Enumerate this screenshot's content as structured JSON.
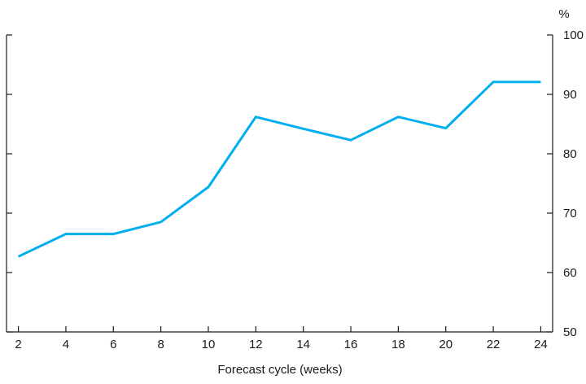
{
  "chart_data": {
    "type": "line",
    "title": "",
    "xlabel": "Forecast cycle (weeks)",
    "ylabel": "",
    "y_unit_label": "%",
    "x": [
      2,
      4,
      6,
      8,
      10,
      12,
      14,
      16,
      18,
      20,
      22,
      24
    ],
    "xlim": [
      1.5,
      24.5
    ],
    "ylim": [
      50,
      100
    ],
    "xticks": [
      2,
      4,
      6,
      8,
      10,
      12,
      14,
      16,
      18,
      20,
      22,
      24
    ],
    "yticks": [
      50,
      60,
      70,
      80,
      90,
      100
    ],
    "y_axis_side": "right",
    "grid": false,
    "series": [
      {
        "color": "#00aeef",
        "values": [
          62.7,
          66.5,
          66.5,
          68.5,
          74.4,
          86.2,
          84.2,
          82.3,
          86.2,
          84.3,
          92.1,
          92.1
        ]
      }
    ]
  }
}
